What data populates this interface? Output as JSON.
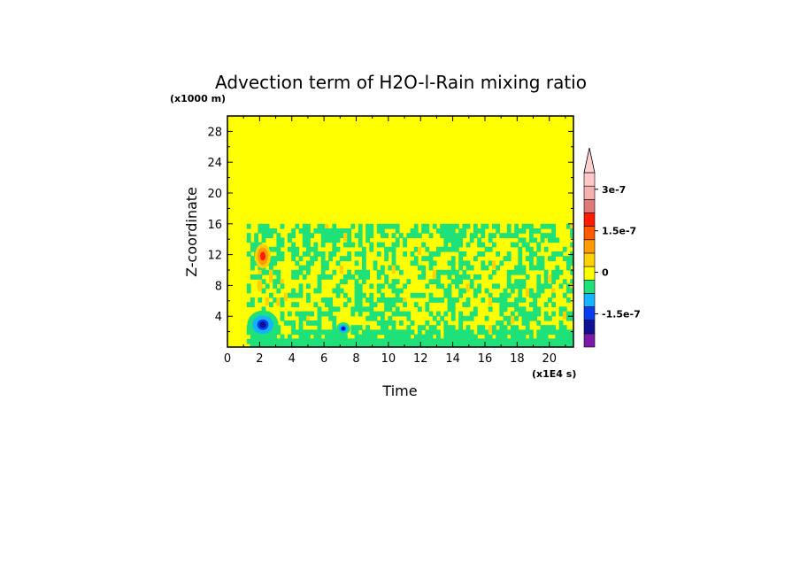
{
  "chart_data": {
    "type": "heatmap",
    "title": "Advection term of H2O-l-Rain mixing ratio",
    "xlabel": "Time",
    "ylabel": "Z-coordinate",
    "x_unit": "(x1E4 s)",
    "y_unit": "(x1000 m)",
    "xlim": [
      0,
      21.5
    ],
    "ylim": [
      0,
      30
    ],
    "x_ticks": [
      "0",
      "2",
      "4",
      "6",
      "8",
      "10",
      "12",
      "14",
      "16",
      "18",
      "20"
    ],
    "x_tick_values": [
      0,
      2,
      4,
      6,
      8,
      10,
      12,
      14,
      16,
      18,
      20
    ],
    "y_ticks": [
      "4",
      "8",
      "12",
      "16",
      "20",
      "24",
      "28"
    ],
    "y_tick_values": [
      4,
      8,
      12,
      16,
      20,
      24,
      28
    ],
    "colorbar": {
      "levels": [
        {
          "value": -2.25e-07,
          "color": "#7a18a8"
        },
        {
          "value": -1.8e-07,
          "color": "#0f0f96"
        },
        {
          "value": -1.35e-07,
          "color": "#0a3cf0"
        },
        {
          "value": -9e-08,
          "color": "#14b4ff"
        },
        {
          "value": -4.5e-08,
          "color": "#1ee17a"
        },
        {
          "value": 0,
          "color": "#ffff00"
        },
        {
          "value": 4.5e-08,
          "color": "#ffd100"
        },
        {
          "value": 9e-08,
          "color": "#ff9a00"
        },
        {
          "value": 1.35e-07,
          "color": "#ff5a00"
        },
        {
          "value": 1.8e-07,
          "color": "#ff1a00"
        },
        {
          "value": 2.25e-07,
          "color": "#e07a7a"
        },
        {
          "value": 2.7e-07,
          "color": "#f5b0b0"
        },
        {
          "value": 3.15e-07,
          "color": "#ffc8c8"
        }
      ],
      "tick_labels": [
        "3e-7",
        "1.5e-7",
        "0",
        "-1.5e-7"
      ],
      "tick_values": [
        3e-07,
        1.5e-07,
        0,
        -1.5e-07
      ],
      "over_color": "#ffd0d0"
    },
    "background_color": "#ffff00",
    "features": [
      {
        "type": "band",
        "x": [
          1.2,
          21.5
        ],
        "y": [
          0.6,
          16
        ],
        "level": "green-patches"
      },
      {
        "type": "blob",
        "x": 2.2,
        "y": 2.9,
        "color": "#0f0f96"
      },
      {
        "type": "blob",
        "x": 7.2,
        "y": 2.4,
        "color": "#0f0f96"
      },
      {
        "type": "blob",
        "x": 2.2,
        "y": 11.8,
        "color": "#ff1a00"
      }
    ]
  }
}
